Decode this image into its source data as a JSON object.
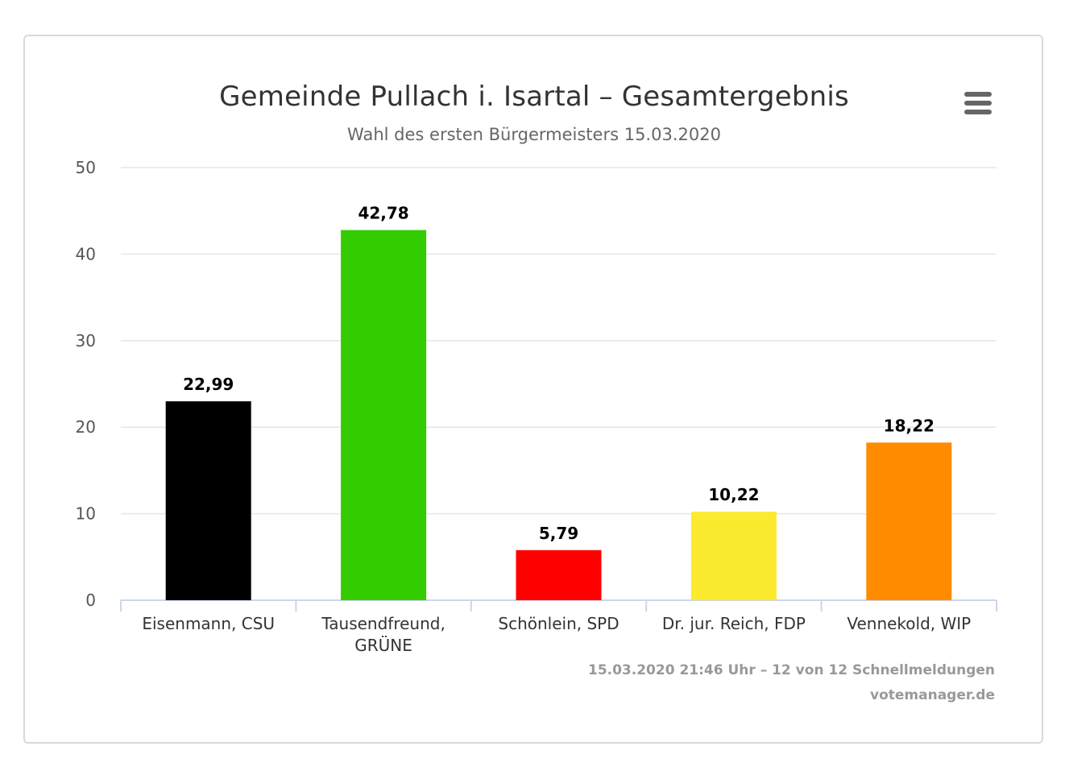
{
  "menu": {
    "icon": "hamburger-menu-icon"
  },
  "credits": {
    "timestamp": "15.03.2020 21:46 Uhr – 12 von 12 Schnellmeldungen",
    "site": "votemanager.de"
  },
  "chart_data": {
    "type": "bar",
    "title": "Gemeinde Pullach i. Isartal – Gesamtergebnis",
    "subtitle": "Wahl des ersten Bürgermeisters 15.03.2020",
    "xlabel": "",
    "ylabel": "",
    "ylim": [
      0,
      50
    ],
    "yticks": [
      "0",
      "10",
      "20",
      "30",
      "40",
      "50"
    ],
    "grid": true,
    "legend": "none",
    "categories": [
      [
        "Eisenmann, CSU"
      ],
      [
        "Tausendfreund,",
        "GRÜNE"
      ],
      [
        "Schönlein, SPD"
      ],
      [
        "Dr. jur. Reich, FDP"
      ],
      [
        "Vennekold, WIP"
      ]
    ],
    "values": [
      22.99,
      42.78,
      5.79,
      10.22,
      18.22
    ],
    "value_labels": [
      "22,99",
      "42,78",
      "5,79",
      "10,22",
      "18,22"
    ],
    "colors": [
      "#000000",
      "#33cc00",
      "#ff0000",
      "#fcea2e",
      "#ff8c00"
    ]
  }
}
